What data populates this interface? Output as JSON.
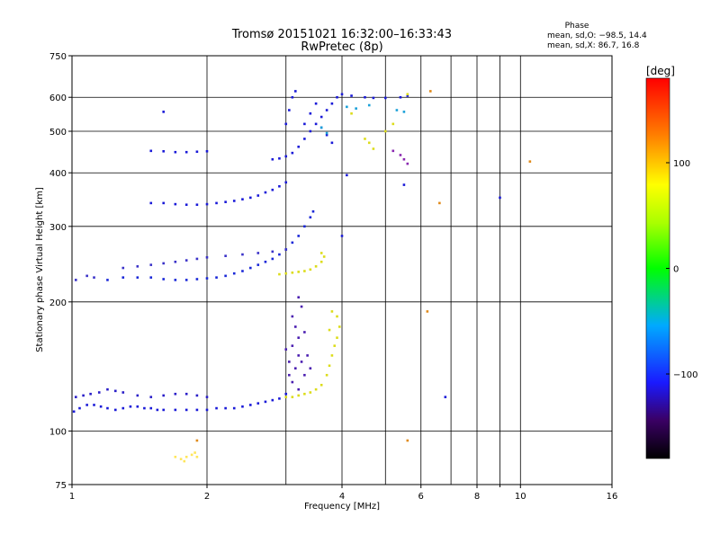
{
  "chart_data": {
    "type": "scatter",
    "title": "Tromsø 20151021 16:32:00–16:33:43",
    "subtitle": "RwPretec (8p)",
    "xlabel": "Frequency [MHz]",
    "ylabel": "Stationary phase Virtual Height [km]",
    "x_scale": "log",
    "y_scale": "log",
    "xlim": [
      1,
      16
    ],
    "ylim": [
      75,
      750
    ],
    "x_ticks": [
      {
        "v": 1,
        "label": "1"
      },
      {
        "v": 2,
        "label": "2"
      },
      {
        "v": 4,
        "label": "4"
      },
      {
        "v": 6,
        "label": "6"
      },
      {
        "v": 8,
        "label": "8"
      },
      {
        "v": 10,
        "label": "10"
      },
      {
        "v": 16,
        "label": "16"
      }
    ],
    "x_minor": [
      9
    ],
    "x_grid": [
      2,
      3,
      4,
      5,
      6,
      7,
      8,
      9,
      10
    ],
    "y_ticks": [
      {
        "v": 75,
        "label": "75"
      },
      {
        "v": 100,
        "label": "100"
      },
      {
        "v": 200,
        "label": "200"
      },
      {
        "v": 300,
        "label": "300"
      },
      {
        "v": 400,
        "label": "400"
      },
      {
        "v": 500,
        "label": "500"
      },
      {
        "v": 600,
        "label": "600"
      },
      {
        "v": 750,
        "label": "750"
      }
    ],
    "y_grid": [
      100,
      200,
      300,
      400,
      500,
      600
    ],
    "grid": true,
    "phase_stats": {
      "heading": "Phase",
      "line_o": "mean, sd,O: −98.5, 14.4",
      "line_x": "mean, sd,X:  86.7, 16.8"
    },
    "colorbar": {
      "label": "[deg]",
      "range": [
        -180,
        180
      ],
      "ticks": [
        {
          "v": 100,
          "label": "100"
        },
        {
          "v": 0,
          "label": "0"
        },
        {
          "v": -100,
          "label": "−100"
        }
      ],
      "colormap": "rainbow"
    },
    "series": [
      {
        "color": "#1a1ad8",
        "points": [
          [
            1.01,
            111
          ],
          [
            1.04,
            113
          ],
          [
            1.08,
            115
          ],
          [
            1.12,
            115
          ],
          [
            1.16,
            114
          ],
          [
            1.2,
            113
          ],
          [
            1.25,
            112
          ],
          [
            1.3,
            113
          ],
          [
            1.35,
            114
          ],
          [
            1.4,
            114
          ],
          [
            1.45,
            113
          ],
          [
            1.5,
            113
          ],
          [
            1.55,
            112
          ],
          [
            1.6,
            112
          ],
          [
            1.7,
            112
          ],
          [
            1.8,
            112
          ],
          [
            1.9,
            112
          ],
          [
            2.0,
            112
          ],
          [
            2.1,
            113
          ],
          [
            2.2,
            113
          ],
          [
            2.3,
            113
          ],
          [
            2.4,
            114
          ],
          [
            2.5,
            115
          ],
          [
            2.6,
            116
          ],
          [
            2.7,
            117
          ],
          [
            2.8,
            118
          ],
          [
            2.9,
            119
          ],
          [
            3.0,
            122
          ]
        ]
      },
      {
        "color": "#2a1ec8",
        "points": [
          [
            1.02,
            120
          ],
          [
            1.06,
            121
          ],
          [
            1.1,
            122
          ],
          [
            1.15,
            123
          ],
          [
            1.2,
            125
          ],
          [
            1.25,
            124
          ],
          [
            1.3,
            123
          ],
          [
            1.4,
            121
          ],
          [
            1.5,
            120
          ],
          [
            1.6,
            121
          ],
          [
            1.7,
            122
          ],
          [
            1.8,
            122
          ],
          [
            1.9,
            121
          ],
          [
            2.0,
            120
          ]
        ]
      },
      {
        "color": "#4a1eb0",
        "points": [
          [
            3.1,
            185
          ],
          [
            3.15,
            175
          ],
          [
            3.2,
            165
          ],
          [
            3.1,
            158
          ],
          [
            3.2,
            150
          ],
          [
            3.25,
            145
          ],
          [
            3.15,
            140
          ],
          [
            3.05,
            135
          ],
          [
            3.1,
            130
          ],
          [
            3.2,
            125
          ],
          [
            3.3,
            135
          ],
          [
            3.35,
            150
          ],
          [
            3.3,
            170
          ],
          [
            3.25,
            195
          ],
          [
            3.2,
            205
          ],
          [
            3.0,
            155
          ],
          [
            3.05,
            145
          ],
          [
            3.4,
            140
          ]
        ]
      },
      {
        "color": "#dcdc1a",
        "points": [
          [
            3.0,
            120
          ],
          [
            3.1,
            120
          ],
          [
            3.2,
            121
          ],
          [
            3.3,
            122
          ],
          [
            3.4,
            123
          ],
          [
            3.5,
            125
          ],
          [
            3.6,
            128
          ],
          [
            3.7,
            135
          ],
          [
            3.75,
            142
          ],
          [
            3.8,
            150
          ],
          [
            3.85,
            158
          ],
          [
            3.9,
            165
          ],
          [
            3.95,
            175
          ],
          [
            3.9,
            185
          ],
          [
            3.8,
            190
          ],
          [
            3.75,
            172
          ]
        ]
      },
      {
        "color": "#ffe65a",
        "points": [
          [
            1.7,
            87
          ],
          [
            1.75,
            86
          ],
          [
            1.8,
            87
          ],
          [
            1.85,
            88
          ],
          [
            1.9,
            87
          ],
          [
            1.78,
            85
          ],
          [
            1.88,
            89
          ]
        ]
      },
      {
        "color": "#1a28d8",
        "points": [
          [
            1.2,
            225
          ],
          [
            1.3,
            228
          ],
          [
            1.4,
            228
          ],
          [
            1.5,
            228
          ],
          [
            1.6,
            226
          ],
          [
            1.7,
            225
          ],
          [
            1.8,
            225
          ],
          [
            1.9,
            226
          ],
          [
            2.0,
            227
          ],
          [
            2.1,
            228
          ],
          [
            2.2,
            230
          ],
          [
            2.3,
            233
          ],
          [
            2.4,
            236
          ],
          [
            2.5,
            240
          ],
          [
            2.6,
            244
          ],
          [
            2.7,
            248
          ],
          [
            2.8,
            252
          ],
          [
            2.9,
            258
          ],
          [
            3.0,
            265
          ],
          [
            3.1,
            275
          ],
          [
            3.2,
            285
          ],
          [
            3.3,
            300
          ],
          [
            3.4,
            315
          ],
          [
            3.45,
            325
          ]
        ]
      },
      {
        "color": "#3a32c8",
        "points": [
          [
            1.3,
            240
          ],
          [
            1.4,
            242
          ],
          [
            1.5,
            244
          ],
          [
            1.6,
            246
          ],
          [
            1.7,
            248
          ],
          [
            1.8,
            250
          ],
          [
            1.9,
            252
          ],
          [
            2.0,
            254
          ],
          [
            2.2,
            256
          ],
          [
            2.4,
            258
          ],
          [
            2.6,
            260
          ],
          [
            2.8,
            262
          ],
          [
            3.0,
            265
          ],
          [
            1.02,
            225
          ],
          [
            1.08,
            230
          ],
          [
            1.12,
            228
          ]
        ]
      },
      {
        "color": "#dcdc1a",
        "points": [
          [
            2.9,
            232
          ],
          [
            3.0,
            233
          ],
          [
            3.1,
            234
          ],
          [
            3.2,
            235
          ],
          [
            3.3,
            236
          ],
          [
            3.4,
            238
          ],
          [
            3.5,
            242
          ],
          [
            3.6,
            248
          ],
          [
            3.65,
            255
          ],
          [
            3.6,
            260
          ]
        ]
      },
      {
        "color": "#1a1ad8",
        "points": [
          [
            1.5,
            340
          ],
          [
            1.6,
            340
          ],
          [
            1.7,
            338
          ],
          [
            1.8,
            337
          ],
          [
            1.9,
            337
          ],
          [
            2.0,
            338
          ],
          [
            2.1,
            340
          ],
          [
            2.2,
            342
          ],
          [
            2.3,
            344
          ],
          [
            2.4,
            347
          ],
          [
            2.5,
            350
          ],
          [
            2.6,
            354
          ],
          [
            2.7,
            360
          ],
          [
            2.8,
            365
          ],
          [
            2.9,
            372
          ],
          [
            3.0,
            380
          ]
        ]
      },
      {
        "color": "#1a1ad8",
        "points": [
          [
            1.5,
            450
          ],
          [
            1.6,
            449
          ],
          [
            1.7,
            447
          ],
          [
            1.8,
            447
          ],
          [
            1.9,
            448
          ],
          [
            2.0,
            449
          ]
        ]
      },
      {
        "color": "#1a1ad8",
        "points": [
          [
            2.8,
            430
          ],
          [
            2.9,
            432
          ],
          [
            3.0,
            437
          ],
          [
            3.1,
            445
          ],
          [
            3.2,
            460
          ],
          [
            3.3,
            480
          ],
          [
            3.4,
            500
          ],
          [
            3.5,
            520
          ],
          [
            3.6,
            540
          ],
          [
            3.7,
            560
          ],
          [
            3.8,
            580
          ],
          [
            3.9,
            600
          ],
          [
            4.0,
            610
          ],
          [
            4.2,
            605
          ],
          [
            4.5,
            600
          ],
          [
            4.7,
            598
          ],
          [
            5.0,
            598
          ],
          [
            5.4,
            600
          ],
          [
            5.6,
            605
          ],
          [
            3.0,
            520
          ],
          [
            3.05,
            560
          ],
          [
            3.1,
            600
          ],
          [
            3.15,
            620
          ],
          [
            3.3,
            520
          ],
          [
            3.4,
            550
          ],
          [
            3.5,
            580
          ],
          [
            3.6,
            510
          ],
          [
            3.7,
            490
          ],
          [
            3.8,
            470
          ]
        ]
      },
      {
        "color": "#1aa0d8",
        "points": [
          [
            4.1,
            570
          ],
          [
            4.3,
            565
          ],
          [
            4.6,
            575
          ],
          [
            5.3,
            560
          ],
          [
            5.5,
            555
          ],
          [
            3.6,
            510
          ],
          [
            3.7,
            495
          ]
        ]
      },
      {
        "color": "#dcdc1a",
        "points": [
          [
            4.5,
            480
          ],
          [
            4.6,
            470
          ],
          [
            4.7,
            455
          ],
          [
            5.0,
            500
          ],
          [
            5.2,
            520
          ],
          [
            4.2,
            550
          ],
          [
            5.6,
            610
          ]
        ]
      },
      {
        "color": "#8a28b0",
        "points": [
          [
            5.5,
            430
          ],
          [
            5.6,
            420
          ],
          [
            5.4,
            440
          ],
          [
            5.2,
            450
          ]
        ]
      },
      {
        "color": "#e08a1a",
        "points": [
          [
            6.3,
            620
          ],
          [
            6.6,
            340
          ],
          [
            6.2,
            190
          ],
          [
            10.5,
            425
          ],
          [
            1.9,
            95
          ],
          [
            5.6,
            95
          ]
        ]
      },
      {
        "color": "#1a1ad8",
        "points": [
          [
            6.8,
            120
          ],
          [
            9.0,
            350
          ],
          [
            5.5,
            375
          ],
          [
            4.1,
            395
          ],
          [
            4.0,
            285
          ],
          [
            1.6,
            555
          ]
        ]
      }
    ]
  }
}
